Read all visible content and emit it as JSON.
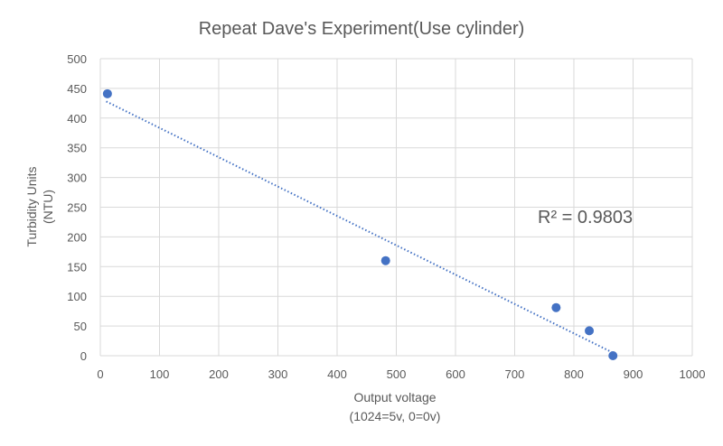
{
  "chart_data": {
    "type": "scatter",
    "title": "Repeat Dave's Experiment(Use cylinder)",
    "xlabel": [
      "Output voltage",
      "(1024=5v, 0=0v)"
    ],
    "ylabel": [
      "Turbidity Units",
      "(NTU)"
    ],
    "xlim": [
      0,
      1000
    ],
    "ylim": [
      0,
      500
    ],
    "xticks": [
      0,
      100,
      200,
      300,
      400,
      500,
      600,
      700,
      800,
      900,
      1000
    ],
    "yticks": [
      0,
      50,
      100,
      150,
      200,
      250,
      300,
      350,
      400,
      450,
      500
    ],
    "grid": true,
    "points": [
      {
        "x": 12,
        "y": 441
      },
      {
        "x": 482,
        "y": 160
      },
      {
        "x": 770,
        "y": 81
      },
      {
        "x": 826,
        "y": 42
      },
      {
        "x": 866,
        "y": 0
      }
    ],
    "trendline": {
      "type": "linear",
      "x": [
        10,
        866
      ],
      "y": [
        428,
        5
      ],
      "style": "dotted"
    },
    "annotation": "R² = 0.9803",
    "colors": {
      "marker": "#4472C4",
      "trendline": "#4472C4",
      "grid": "#D9D9D9"
    }
  }
}
